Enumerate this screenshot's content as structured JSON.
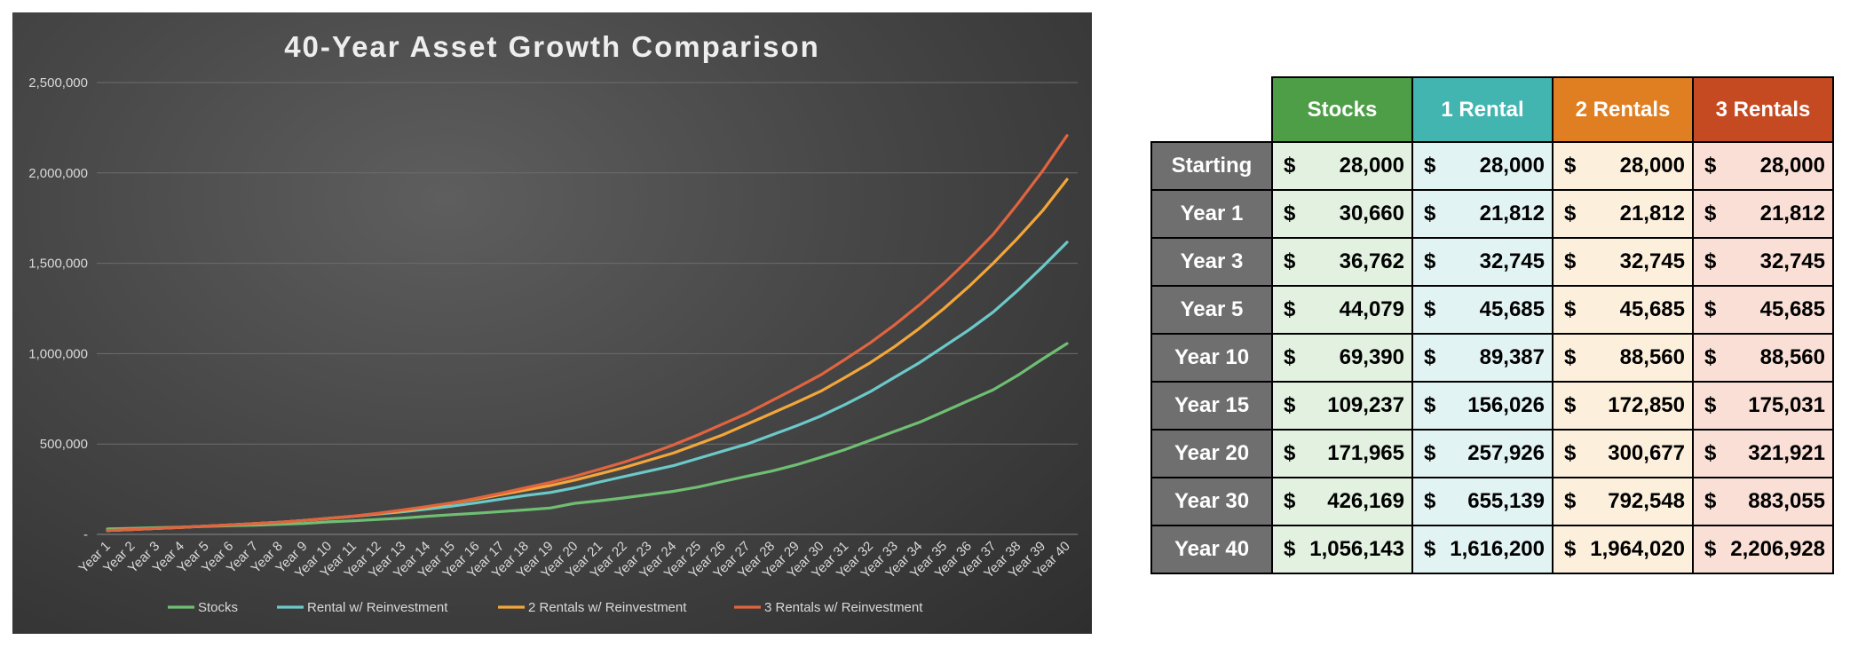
{
  "chart_data": {
    "type": "line",
    "title": "40-Year Asset Growth Comparison",
    "categories": [
      "Year 1",
      "Year 2",
      "Year 3",
      "Year 4",
      "Year 5",
      "Year 6",
      "Year 7",
      "Year 8",
      "Year 9",
      "Year 10",
      "Year 11",
      "Year 12",
      "Year 13",
      "Year 14",
      "Year 15",
      "Year 16",
      "Year 17",
      "Year 18",
      "Year 19",
      "Year 20",
      "Year 21",
      "Year 22",
      "Year 23",
      "Year 24",
      "Year 25",
      "Year 26",
      "Year 27",
      "Year 28",
      "Year 29",
      "Year 30",
      "Year 31",
      "Year 32",
      "Year 33",
      "Year 34",
      "Year 35",
      "Year 36",
      "Year 37",
      "Year 38",
      "Year 39",
      "Year 40"
    ],
    "yticks": [
      "-",
      "500,000",
      "1,000,000",
      "1,500,000",
      "2,000,000",
      "2,500,000"
    ],
    "ylim": [
      0,
      2500000
    ],
    "grid": true,
    "legend_position": "bottom",
    "series": [
      {
        "name": "Stocks",
        "color": "#6fbf73",
        "values": [
          30660,
          33486,
          36762,
          40500,
          44079,
          47600,
          51000,
          55600,
          60500,
          69390,
          75000,
          82500,
          90000,
          100000,
          109237,
          117000,
          126000,
          135500,
          146000,
          171965,
          186000,
          202000,
          220000,
          238000,
          262000,
          292000,
          322000,
          350000,
          385000,
          426169,
          470000,
          520000,
          570000,
          620000,
          680000,
          740000,
          800000,
          880000,
          970000,
          1056143
        ]
      },
      {
        "name": "Rental w/ Reinvestment",
        "color": "#6cc9c9",
        "values": [
          21812,
          26900,
          32745,
          39000,
          45685,
          52000,
          59500,
          67000,
          77000,
          89387,
          100000,
          113000,
          125000,
          140000,
          156026,
          175000,
          195000,
          215000,
          232000,
          257926,
          290000,
          320000,
          350000,
          380000,
          420000,
          460000,
          500000,
          550000,
          600000,
          655139,
          720000,
          790000,
          870000,
          950000,
          1040000,
          1130000,
          1230000,
          1350000,
          1480000,
          1616200
        ]
      },
      {
        "name": "2 Rentals w/ Reinvestment",
        "color": "#f3a63a",
        "values": [
          21812,
          26900,
          32745,
          39000,
          45685,
          52000,
          59500,
          67000,
          77000,
          88560,
          100000,
          115000,
          130000,
          150000,
          172850,
          195000,
          220000,
          245000,
          270000,
          300677,
          335000,
          370000,
          410000,
          450000,
          500000,
          550000,
          610000,
          670000,
          730000,
          792548,
          870000,
          950000,
          1040000,
          1140000,
          1250000,
          1370000,
          1500000,
          1640000,
          1790000,
          1964020
        ]
      },
      {
        "name": "3 Rentals w/ Reinvestment",
        "color": "#e0643f",
        "values": [
          21812,
          26900,
          32745,
          39000,
          45685,
          52000,
          59500,
          67000,
          77000,
          88560,
          101000,
          117000,
          135000,
          154000,
          175031,
          200000,
          228000,
          258000,
          288000,
          321921,
          360000,
          400000,
          445000,
          495000,
          550000,
          610000,
          670000,
          740000,
          810000,
          883055,
          970000,
          1060000,
          1160000,
          1270000,
          1390000,
          1520000,
          1660000,
          1830000,
          2010000,
          2206928
        ]
      }
    ]
  },
  "table": {
    "headers": [
      {
        "label": "Stocks",
        "color": "#4e9e47"
      },
      {
        "label": "1 Rental",
        "color": "#42b5b0"
      },
      {
        "label": "2 Rentals",
        "color": "#e07e22"
      },
      {
        "label": "3 Rentals",
        "color": "#c54a22"
      }
    ],
    "cell_colors": [
      "#e2f1e0",
      "#e2f3f3",
      "#fcefdc",
      "#f9dfd6"
    ],
    "label_bg": "#6f6f6f",
    "rows": [
      {
        "label": "Starting",
        "values": [
          "28,000",
          "28,000",
          "28,000",
          "28,000"
        ]
      },
      {
        "label": "Year 1",
        "values": [
          "30,660",
          "21,812",
          "21,812",
          "21,812"
        ]
      },
      {
        "label": "Year 3",
        "values": [
          "36,762",
          "32,745",
          "32,745",
          "32,745"
        ]
      },
      {
        "label": "Year 5",
        "values": [
          "44,079",
          "45,685",
          "45,685",
          "45,685"
        ]
      },
      {
        "label": "Year 10",
        "values": [
          "69,390",
          "89,387",
          "88,560",
          "88,560"
        ]
      },
      {
        "label": "Year 15",
        "values": [
          "109,237",
          "156,026",
          "172,850",
          "175,031"
        ]
      },
      {
        "label": "Year 20",
        "values": [
          "171,965",
          "257,926",
          "300,677",
          "321,921"
        ]
      },
      {
        "label": "Year 30",
        "values": [
          "426,169",
          "655,139",
          "792,548",
          "883,055"
        ]
      },
      {
        "label": "Year 40",
        "values": [
          "1,056,143",
          "1,616,200",
          "1,964,020",
          "2,206,928"
        ]
      }
    ],
    "currency_symbol": "$"
  }
}
